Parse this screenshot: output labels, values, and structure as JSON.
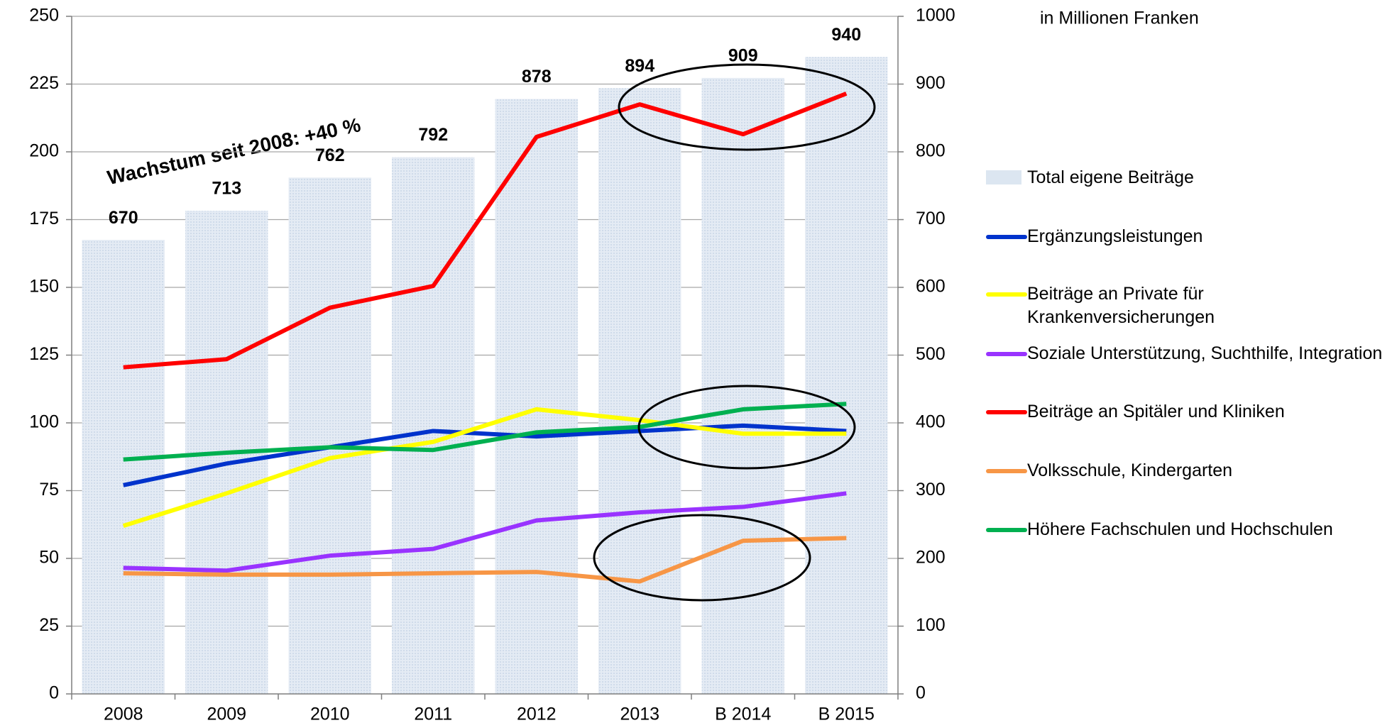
{
  "chart_data": {
    "type": "bar_line",
    "note": "in Millionen Franken",
    "annotation": "Wachstum seit 2008: +40 %",
    "categories": [
      "2008",
      "2009",
      "2010",
      "2011",
      "2012",
      "2013",
      "B 2014",
      "B 2015"
    ],
    "series": [
      {
        "name": "Total eigene Beiträge",
        "type": "bar",
        "axis": "y2",
        "color": "#dce6f1",
        "values": [
          670,
          713,
          762,
          792,
          878,
          894,
          909,
          940
        ]
      },
      {
        "name": "Ergänzungsleistungen",
        "type": "line",
        "color": "#0033cc",
        "values": [
          77,
          85,
          91,
          97,
          95,
          97,
          99,
          97
        ]
      },
      {
        "name": "Beiträge an Private für Krankenversicherungen",
        "type": "line",
        "color": "#ffff00",
        "values": [
          62,
          74,
          87,
          93,
          105,
          101,
          96,
          96
        ]
      },
      {
        "name": "Soziale Unterstützung, Suchthilfe, Integration",
        "type": "line",
        "color": "#9933ff",
        "values": [
          46.5,
          45.5,
          51,
          53.5,
          64,
          67,
          69,
          74
        ]
      },
      {
        "name": "Beiträge an Spitäler und Kliniken",
        "type": "line",
        "color": "#ff0000",
        "values": [
          120.5,
          123.5,
          142.5,
          150.5,
          205.5,
          217.5,
          206.5,
          221.5
        ]
      },
      {
        "name": "Volksschule, Kindergarten",
        "type": "line",
        "color": "#f79646",
        "values": [
          44.5,
          44,
          44,
          44.5,
          45,
          41.5,
          56.5,
          57.5
        ]
      },
      {
        "name": "Höhere Fachschulen und Hochschulen",
        "type": "line",
        "color": "#00b050",
        "values": [
          86.5,
          89,
          91,
          90,
          96.5,
          98.5,
          105,
          107
        ]
      }
    ],
    "ylim": [
      0,
      250
    ],
    "yticks": [
      0,
      25,
      50,
      75,
      100,
      125,
      150,
      175,
      200,
      225,
      250
    ],
    "y2lim": [
      0,
      1000
    ],
    "y2ticks": [
      0,
      100,
      200,
      300,
      400,
      500,
      600,
      700,
      800,
      900,
      1000
    ],
    "grid": true
  }
}
